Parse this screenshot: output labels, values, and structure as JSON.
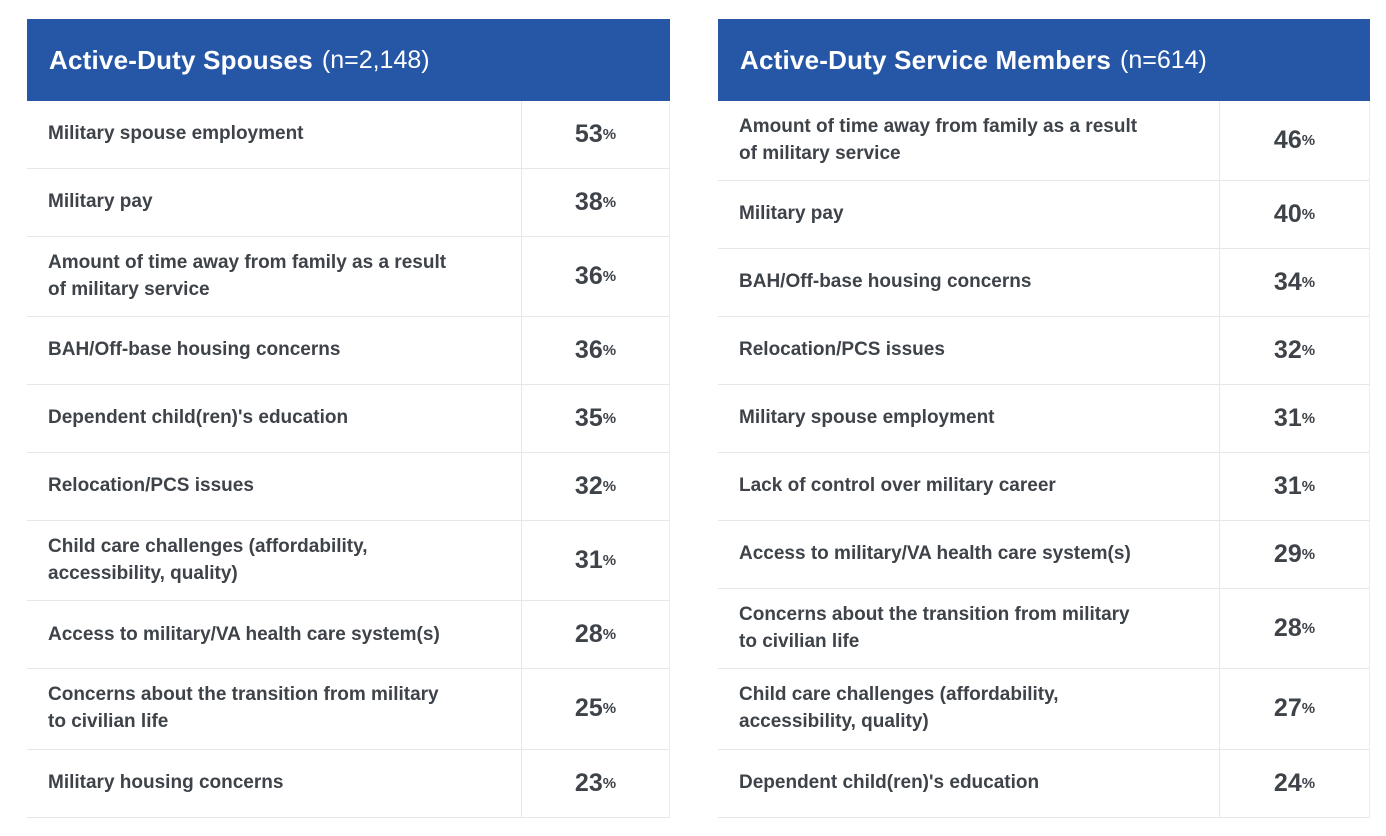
{
  "percent_suffix": "%",
  "colors": {
    "header_bg": "#2557a6",
    "header_text": "#ffffff",
    "body_text": "#3e4349",
    "divider": "#e7e7e7"
  },
  "tables": [
    {
      "title": "Active-Duty Spouses",
      "n_label": "(n=2,148)",
      "rows": [
        {
          "label": "Military spouse employment",
          "value": "53"
        },
        {
          "label": "Military pay",
          "value": "38"
        },
        {
          "label": "Amount of time away from family as a result\nof military service",
          "value": "36"
        },
        {
          "label": "BAH/Off-base housing concerns",
          "value": "36"
        },
        {
          "label": "Dependent child(ren)'s education",
          "value": "35"
        },
        {
          "label": "Relocation/PCS issues",
          "value": "32"
        },
        {
          "label": "Child care challenges (affordability,\naccessibility, quality)",
          "value": "31"
        },
        {
          "label": "Access to military/VA health care system(s)",
          "value": "28"
        },
        {
          "label": "Concerns about the transition from military\nto civilian life",
          "value": "25"
        },
        {
          "label": "Military housing concerns",
          "value": "23"
        }
      ]
    },
    {
      "title": "Active-Duty Service Members",
      "n_label": "(n=614)",
      "rows": [
        {
          "label": "Amount of time away from family as a result\nof military service",
          "value": "46"
        },
        {
          "label": "Military pay",
          "value": "40"
        },
        {
          "label": "BAH/Off-base housing concerns",
          "value": "34"
        },
        {
          "label": "Relocation/PCS issues",
          "value": "32"
        },
        {
          "label": "Military spouse employment",
          "value": "31"
        },
        {
          "label": "Lack of control over military career",
          "value": "31"
        },
        {
          "label": "Access to military/VA health care system(s)",
          "value": "29"
        },
        {
          "label": "Concerns about the transition from military\nto civilian life",
          "value": "28"
        },
        {
          "label": "Child care challenges (affordability,\naccessibility, quality)",
          "value": "27"
        },
        {
          "label": "Dependent child(ren)'s education",
          "value": "24"
        }
      ]
    }
  ],
  "chart_data": [
    {
      "type": "table",
      "title": "Active-Duty Spouses (n=2,148)",
      "n": 2148,
      "unit": "%",
      "categories": [
        "Military spouse employment",
        "Military pay",
        "Amount of time away from family as a result of military service",
        "BAH/Off-base housing concerns",
        "Dependent child(ren)'s education",
        "Relocation/PCS issues",
        "Child care challenges (affordability, accessibility, quality)",
        "Access to military/VA health care system(s)",
        "Concerns about the transition from military to civilian life",
        "Military housing concerns"
      ],
      "values": [
        53,
        38,
        36,
        36,
        35,
        32,
        31,
        28,
        25,
        23
      ]
    },
    {
      "type": "table",
      "title": "Active-Duty Service Members (n=614)",
      "n": 614,
      "unit": "%",
      "categories": [
        "Amount of time away from family as a result of military service",
        "Military pay",
        "BAH/Off-base housing concerns",
        "Relocation/PCS issues",
        "Military spouse employment",
        "Lack of control over military career",
        "Access to military/VA health care system(s)",
        "Concerns about the transition from military to civilian life",
        "Child care challenges (affordability, accessibility, quality)",
        "Dependent child(ren)'s education"
      ],
      "values": [
        46,
        40,
        34,
        32,
        31,
        31,
        29,
        28,
        27,
        24
      ]
    }
  ]
}
